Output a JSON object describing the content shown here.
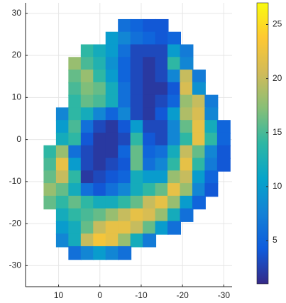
{
  "chart_data": {
    "type": "scatter",
    "xlim": [
      18,
      -32
    ],
    "ylim": [
      -35,
      32.5
    ],
    "xticks": [
      10,
      0,
      -10,
      -20,
      -30
    ],
    "yticks": [
      30,
      20,
      10,
      0,
      -10,
      -20,
      -30
    ],
    "grid": true,
    "clim": [
      1,
      27
    ],
    "cticks": [
      5,
      10,
      15,
      20,
      25
    ],
    "colormap": [
      "#352a87",
      "#0f5cdd",
      "#1481d6",
      "#06a4ca",
      "#2eb7a4",
      "#87bf77",
      "#d1bb59",
      "#fec832",
      "#f9fb0e"
    ],
    "x": [
      -6,
      -9,
      -12,
      -15,
      -3,
      -6,
      -9,
      -12,
      -15,
      -18,
      3,
      0,
      -3,
      -6,
      -9,
      -12,
      -15,
      -18,
      -21,
      6,
      3,
      0,
      -3,
      -6,
      -9,
      -12,
      -15,
      -18,
      -21,
      6,
      3,
      0,
      -3,
      -6,
      -9,
      -12,
      -15,
      -18,
      -21,
      -24,
      6,
      3,
      0,
      -3,
      -6,
      -9,
      -12,
      -15,
      -18,
      -21,
      -24,
      6,
      3,
      0,
      -3,
      -6,
      -9,
      -12,
      -15,
      -18,
      -21,
      -24,
      -27,
      9,
      6,
      3,
      0,
      -3,
      -6,
      -9,
      -12,
      -15,
      -18,
      -21,
      -24,
      -27,
      9,
      6,
      3,
      0,
      -3,
      -6,
      -9,
      -12,
      -15,
      -18,
      -21,
      -24,
      -27,
      -30,
      9,
      6,
      3,
      0,
      -3,
      -6,
      -9,
      -12,
      -15,
      -18,
      -21,
      -24,
      -27,
      -30,
      12,
      9,
      6,
      3,
      0,
      -3,
      -6,
      -9,
      -12,
      -15,
      -18,
      -21,
      -24,
      -27,
      -30,
      12,
      9,
      6,
      3,
      0,
      -3,
      -6,
      -9,
      -12,
      -15,
      -18,
      -21,
      -24,
      -27,
      -30,
      12,
      9,
      6,
      3,
      0,
      -3,
      -6,
      -9,
      -12,
      -15,
      -18,
      -21,
      -24,
      -27,
      12,
      9,
      6,
      3,
      0,
      -3,
      -6,
      -9,
      -12,
      -15,
      -18,
      -21,
      -24,
      -27,
      12,
      9,
      6,
      3,
      0,
      -3,
      -6,
      -9,
      -12,
      -15,
      -18,
      -21,
      -24,
      9,
      6,
      3,
      0,
      -3,
      -6,
      -9,
      -12,
      -15,
      -18,
      -21,
      9,
      6,
      3,
      0,
      -3,
      -6,
      -9,
      -12,
      -15,
      -18,
      9,
      6,
      3,
      0,
      -3,
      -6,
      -9,
      -12,
      6,
      3,
      0,
      -3,
      -6
    ],
    "y": [
      27,
      27,
      27,
      27,
      24,
      24,
      24,
      24,
      24,
      24,
      21,
      21,
      21,
      21,
      21,
      21,
      21,
      21,
      21,
      18,
      18,
      18,
      18,
      18,
      18,
      18,
      18,
      18,
      18,
      15,
      15,
      15,
      15,
      15,
      15,
      15,
      15,
      15,
      15,
      15,
      12,
      12,
      12,
      12,
      12,
      12,
      12,
      12,
      12,
      12,
      12,
      9,
      9,
      9,
      9,
      9,
      9,
      9,
      9,
      9,
      9,
      9,
      9,
      6,
      6,
      6,
      6,
      6,
      6,
      6,
      6,
      6,
      6,
      6,
      6,
      6,
      3,
      3,
      3,
      3,
      3,
      3,
      3,
      3,
      3,
      3,
      3,
      3,
      3,
      3,
      0,
      0,
      0,
      0,
      0,
      0,
      0,
      0,
      0,
      0,
      0,
      0,
      0,
      0,
      -3,
      -3,
      -3,
      -3,
      -3,
      -3,
      -3,
      -3,
      -3,
      -3,
      -3,
      -3,
      -3,
      -3,
      -3,
      -6,
      -6,
      -6,
      -6,
      -6,
      -6,
      -6,
      -6,
      -6,
      -6,
      -6,
      -6,
      -6,
      -6,
      -6,
      -9,
      -9,
      -9,
      -9,
      -9,
      -9,
      -9,
      -9,
      -9,
      -9,
      -9,
      -9,
      -9,
      -9,
      -12,
      -12,
      -12,
      -12,
      -12,
      -12,
      -12,
      -12,
      -12,
      -12,
      -12,
      -12,
      -12,
      -12,
      -15,
      -15,
      -15,
      -15,
      -15,
      -15,
      -15,
      -15,
      -15,
      -15,
      -15,
      -15,
      -15,
      -18,
      -18,
      -18,
      -18,
      -18,
      -18,
      -18,
      -18,
      -18,
      -18,
      -18,
      -21,
      -21,
      -21,
      -21,
      -21,
      -21,
      -21,
      -21,
      -21,
      -21,
      -24,
      -24,
      -24,
      -24,
      -24,
      -24,
      -24,
      -24,
      -27,
      -27,
      -27,
      -27,
      -27
    ],
    "values": [
      6,
      5,
      4,
      4,
      10,
      8,
      6,
      5,
      4,
      5,
      14,
      12,
      10,
      6,
      3,
      3,
      3,
      10,
      7,
      18,
      15,
      13,
      9,
      5,
      3,
      2,
      3,
      14,
      8,
      16,
      18,
      14,
      10,
      5,
      3,
      2,
      3,
      8,
      20,
      7,
      15,
      17,
      16,
      12,
      6,
      3,
      2,
      2,
      4,
      21,
      9,
      14,
      16,
      15,
      12,
      6,
      3,
      2,
      3,
      5,
      18,
      20,
      7,
      8,
      14,
      12,
      8,
      5,
      8,
      3,
      2,
      4,
      10,
      19,
      21,
      8,
      10,
      15,
      6,
      3,
      2,
      4,
      10,
      3,
      3,
      8,
      16,
      22,
      12,
      5,
      12,
      14,
      4,
      2,
      2,
      3,
      14,
      4,
      3,
      8,
      14,
      22,
      14,
      5,
      14,
      18,
      6,
      3,
      2,
      2,
      5,
      16,
      5,
      6,
      12,
      20,
      16,
      8,
      4,
      15,
      22,
      10,
      3,
      2,
      3,
      4,
      16,
      6,
      8,
      14,
      22,
      14,
      7,
      4,
      16,
      20,
      14,
      2,
      3,
      4,
      5,
      12,
      10,
      10,
      18,
      20,
      10,
      5,
      18,
      16,
      12,
      6,
      4,
      6,
      8,
      12,
      14,
      16,
      22,
      18,
      8,
      4,
      16,
      14,
      16,
      14,
      12,
      12,
      14,
      16,
      20,
      22,
      18,
      10,
      5,
      12,
      14,
      15,
      16,
      18,
      20,
      22,
      21,
      18,
      12,
      6,
      10,
      12,
      16,
      20,
      22,
      22,
      20,
      16,
      10,
      6,
      8,
      12,
      20,
      23,
      22,
      18,
      12,
      7,
      6,
      8,
      10,
      8,
      6
    ]
  }
}
